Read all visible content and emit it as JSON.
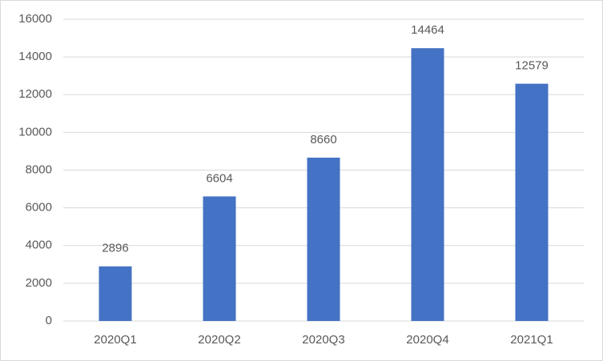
{
  "chart_data": {
    "type": "bar",
    "categories": [
      "2020Q1",
      "2020Q2",
      "2020Q3",
      "2020Q4",
      "2021Q1"
    ],
    "values": [
      2896,
      6604,
      8660,
      14464,
      12579
    ],
    "color": "#4472c4",
    "ylim": [
      0,
      16000
    ],
    "yticks": [
      0,
      2000,
      4000,
      6000,
      8000,
      10000,
      12000,
      14000,
      16000
    ],
    "grid": true
  }
}
